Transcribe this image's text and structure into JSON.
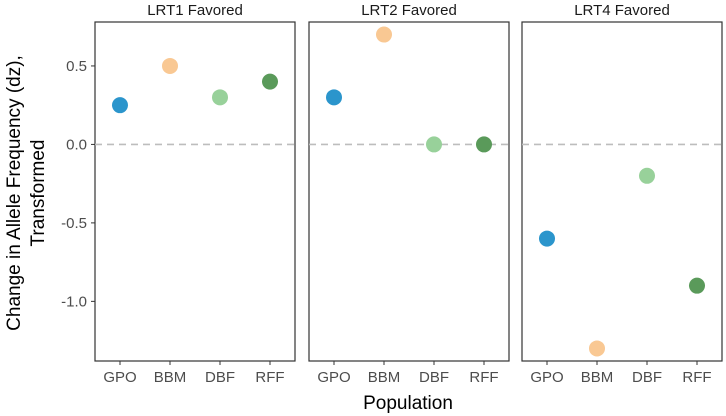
{
  "chart_data": {
    "type": "scatter",
    "xlabel": "Population",
    "ylabel_lines": [
      "Change in Allele Frequency (dz),",
      "Transformed"
    ],
    "categories": [
      "GPO",
      "BBM",
      "DBF",
      "RFF"
    ],
    "y_ticks": [
      -1.0,
      -0.5,
      0.0,
      0.5
    ],
    "y_tick_labels": [
      "-1.0",
      "-0.5",
      "0.0",
      "0.5"
    ],
    "ylim": [
      -1.38,
      0.78
    ],
    "reference_line": 0.0,
    "colors": {
      "GPO": "#2b95cc",
      "BBM": "#f9c893",
      "DBF": "#98d19a",
      "RFF": "#5a9a5a",
      "reference_line": "#bdbdbd",
      "panel_border": "#333333"
    },
    "panels": [
      {
        "title": "LRT1 Favored",
        "values": [
          0.25,
          0.5,
          0.3,
          0.4
        ]
      },
      {
        "title": "LRT2 Favored",
        "values": [
          0.3,
          0.7,
          0.0,
          0.0
        ]
      },
      {
        "title": "LRT4 Favored",
        "values": [
          -0.6,
          -1.3,
          -0.2,
          -0.9
        ]
      }
    ]
  }
}
